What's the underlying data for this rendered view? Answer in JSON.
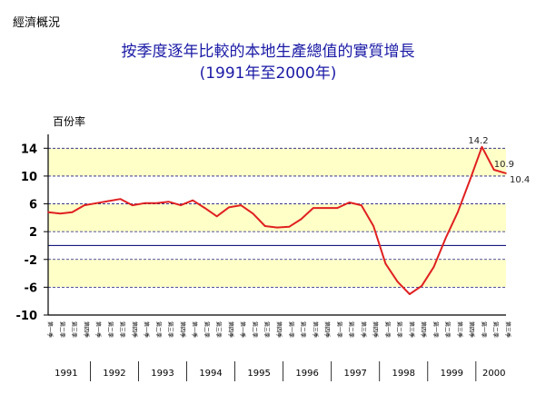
{
  "header": {
    "corner_label": "經濟概況"
  },
  "chart_data": {
    "type": "line",
    "title": "按季度逐年比較的本地生產總值的實質增長",
    "subtitle": "(1991年至2000年)",
    "ylabel": "百份率",
    "xlabel": "",
    "ylim": [
      -10,
      16
    ],
    "yticks": [
      14,
      10,
      6,
      2,
      -2,
      -6,
      -10
    ],
    "grid": true,
    "quarter_labels": [
      "第一季",
      "第二季",
      "第三季",
      "第四季"
    ],
    "years": [
      "1991",
      "1992",
      "1993",
      "1994",
      "1995",
      "1996",
      "1997",
      "1998",
      "1999",
      "2000"
    ],
    "series": [
      {
        "name": "",
        "color": "#e02020",
        "values": [
          4.8,
          4.6,
          4.8,
          5.8,
          6.1,
          6.4,
          6.7,
          5.8,
          6.1,
          6.1,
          6.3,
          5.8,
          6.5,
          5.4,
          4.2,
          5.5,
          5.8,
          4.6,
          2.8,
          2.6,
          2.7,
          3.8,
          5.4,
          5.4,
          5.4,
          6.2,
          5.8,
          2.8,
          -2.6,
          -5.2,
          -7.0,
          -5.8,
          -3.1,
          1.1,
          4.8,
          9.4,
          14.2,
          10.9,
          10.4
        ]
      }
    ],
    "data_labels": [
      {
        "index": 36,
        "text": "14.2"
      },
      {
        "index": 37,
        "text": "10.9"
      },
      {
        "index": 38,
        "text": "10.4"
      }
    ],
    "colors": {
      "band_light": "#ffffc8",
      "zero_line": "#1a1a80",
      "grid": "#1a1a80"
    }
  }
}
